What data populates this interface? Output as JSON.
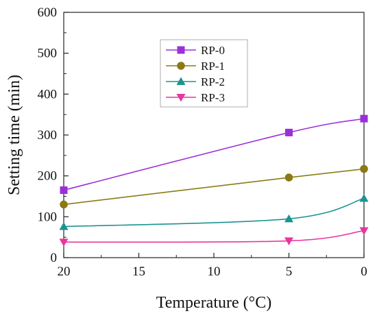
{
  "chart_data": {
    "type": "line",
    "title": "",
    "xlabel": "Temperature (°C)",
    "ylabel": "Setting time (min)",
    "xlim": [
      20,
      0
    ],
    "ylim": [
      0,
      600
    ],
    "x_reversed": true,
    "xticks": [
      "20",
      "15",
      "10",
      "5",
      "0"
    ],
    "yticks": [
      "0",
      "100",
      "200",
      "300",
      "400",
      "500",
      "600"
    ],
    "x": [
      20,
      5,
      0
    ],
    "series": [
      {
        "name": "RP-0",
        "values": [
          165,
          306,
          340
        ],
        "color": "#9b30d9",
        "marker": "square"
      },
      {
        "name": "RP-1",
        "values": [
          130,
          196,
          217
        ],
        "color": "#8a7a14",
        "marker": "circle"
      },
      {
        "name": "RP-2",
        "values": [
          76,
          95,
          145
        ],
        "color": "#1a9490",
        "marker": "triangle-up"
      },
      {
        "name": "RP-3",
        "values": [
          38,
          41,
          66
        ],
        "color": "#e8359f",
        "marker": "triangle-down"
      }
    ],
    "grid": false,
    "legend": "upper-center"
  }
}
